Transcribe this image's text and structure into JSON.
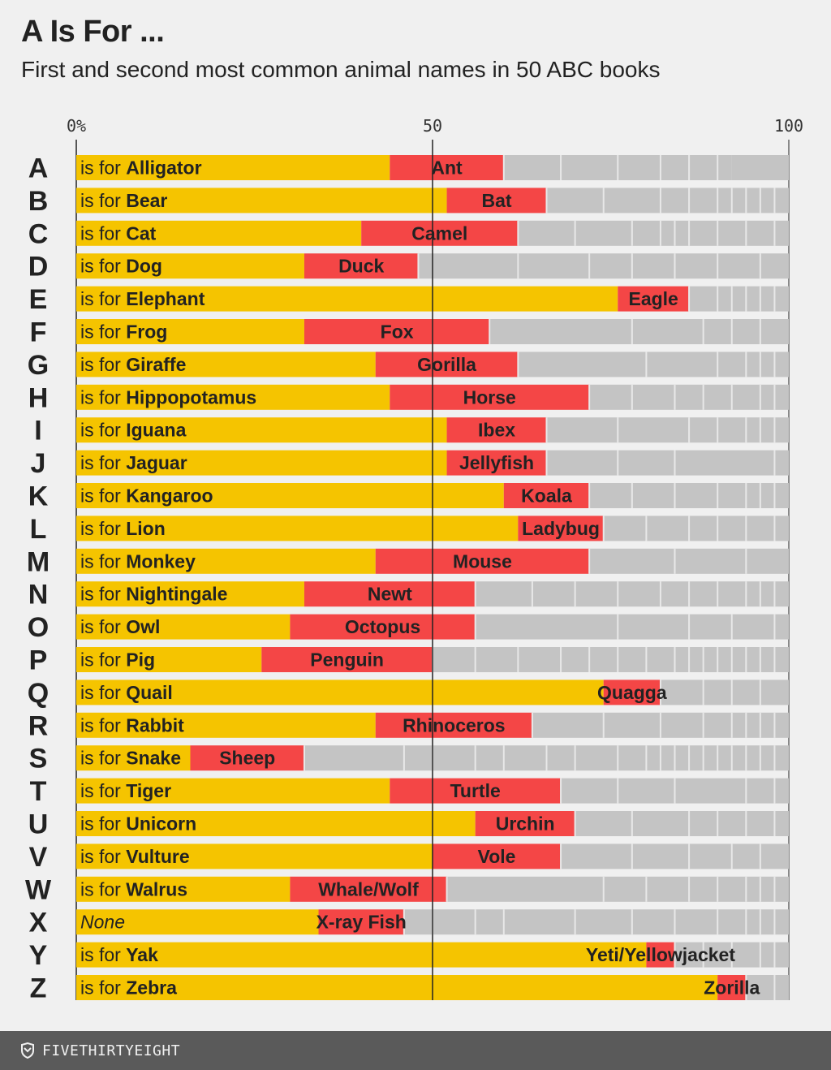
{
  "title": "A Is For ...",
  "subtitle": "First and second most common animal names in 50 ABC books",
  "footer": {
    "brand": "FIVETHIRTYEIGHT",
    "logo_icon": "fivethirtyeight-logo-icon"
  },
  "colors": {
    "first": "#f5c400",
    "second": "#f44646",
    "other": "#c4c4c4",
    "separator": "#e8e8e8"
  },
  "chart_data": {
    "type": "bar",
    "orientation": "horizontal",
    "stacked": true,
    "title": "A Is For ...",
    "subtitle": "First and second most common animal names in 50 ABC books",
    "xlim": [
      0,
      100
    ],
    "x_ticks": [
      0,
      50,
      100
    ],
    "x_tick_labels": [
      "0%",
      "50",
      "100"
    ],
    "prefix": "is for ",
    "rows": [
      {
        "letter": "A",
        "first": "Alligator",
        "first_pct": 44,
        "second": "Ant",
        "second_pct": 16,
        "others": [
          8,
          8,
          6,
          4,
          4,
          2
        ]
      },
      {
        "letter": "B",
        "first": "Bear",
        "first_pct": 52,
        "second": "Bat",
        "second_pct": 14,
        "others": [
          8,
          8,
          4,
          4,
          2,
          2,
          2,
          2,
          2
        ]
      },
      {
        "letter": "C",
        "first": "Cat",
        "first_pct": 40,
        "second": "Camel",
        "second_pct": 22,
        "others": [
          8,
          8,
          4,
          2,
          2,
          4,
          4,
          4,
          2
        ]
      },
      {
        "letter": "D",
        "first": "Dog",
        "first_pct": 32,
        "second": "Duck",
        "second_pct": 16,
        "others": [
          14,
          10,
          6,
          6,
          6,
          6,
          4,
          4,
          2
        ]
      },
      {
        "letter": "E",
        "first": "Elephant",
        "first_pct": 76,
        "second": "Eagle",
        "second_pct": 10,
        "others": [
          4,
          2,
          2,
          2,
          2,
          2
        ]
      },
      {
        "letter": "F",
        "first": "Frog",
        "first_pct": 32,
        "second": "Fox",
        "second_pct": 26,
        "others": [
          20,
          10,
          4,
          4,
          4
        ]
      },
      {
        "letter": "G",
        "first": "Giraffe",
        "first_pct": 42,
        "second": "Gorilla",
        "second_pct": 20,
        "others": [
          18,
          10,
          4,
          2,
          2,
          2
        ]
      },
      {
        "letter": "H",
        "first": "Hippopotamus",
        "first_pct": 44,
        "second": "Horse",
        "second_pct": 28,
        "others": [
          6,
          6,
          4,
          4,
          4,
          2,
          2
        ]
      },
      {
        "letter": "I",
        "first": "Iguana",
        "first_pct": 52,
        "second": "Ibex",
        "second_pct": 14,
        "others": [
          10,
          10,
          4,
          4,
          2,
          2,
          2
        ]
      },
      {
        "letter": "J",
        "first": "Jaguar",
        "first_pct": 52,
        "second": "Jellyfish",
        "second_pct": 14,
        "others": [
          10,
          8,
          14,
          2
        ]
      },
      {
        "letter": "K",
        "first": "Kangaroo",
        "first_pct": 60,
        "second": "Koala",
        "second_pct": 12,
        "others": [
          6,
          6,
          6,
          4,
          2,
          2,
          2
        ]
      },
      {
        "letter": "L",
        "first": "Lion",
        "first_pct": 62,
        "second": "Ladybug",
        "second_pct": 12,
        "others": [
          6,
          6,
          4,
          4,
          4,
          2
        ]
      },
      {
        "letter": "M",
        "first": "Monkey",
        "first_pct": 42,
        "second": "Mouse",
        "second_pct": 30,
        "others": [
          12,
          10,
          6
        ]
      },
      {
        "letter": "N",
        "first": "Nightingale",
        "first_pct": 32,
        "second": "Newt",
        "second_pct": 24,
        "others": [
          8,
          6,
          6,
          6,
          4,
          4,
          4,
          2,
          2,
          2
        ]
      },
      {
        "letter": "O",
        "first": "Owl",
        "first_pct": 30,
        "second": "Octopus",
        "second_pct": 26,
        "others": [
          20,
          10,
          6,
          6,
          2
        ]
      },
      {
        "letter": "P",
        "first": "Pig",
        "first_pct": 26,
        "second": "Penguin",
        "second_pct": 24,
        "others": [
          6,
          6,
          6,
          4,
          4,
          4,
          4,
          2,
          2,
          2,
          2,
          2,
          2,
          2,
          2,
          2
        ]
      },
      {
        "letter": "Q",
        "first": "Quail",
        "first_pct": 74,
        "second": "Quagga",
        "second_pct": 8,
        "others": [
          6,
          4,
          4,
          4
        ]
      },
      {
        "letter": "R",
        "first": "Rabbit",
        "first_pct": 42,
        "second": "Rhinoceros",
        "second_pct": 22,
        "others": [
          10,
          8,
          6,
          4,
          2,
          2,
          2,
          2
        ]
      },
      {
        "letter": "S",
        "first": "Snake",
        "first_pct": 16,
        "second": "Sheep",
        "second_pct": 16,
        "others": [
          14,
          4,
          6,
          4,
          6,
          4,
          6,
          4,
          2,
          2,
          2,
          2,
          2,
          2,
          2,
          2,
          2,
          2
        ]
      },
      {
        "letter": "T",
        "first": "Tiger",
        "first_pct": 44,
        "second": "Turtle",
        "second_pct": 24,
        "others": [
          8,
          8,
          10,
          4,
          2
        ]
      },
      {
        "letter": "U",
        "first": "Unicorn",
        "first_pct": 56,
        "second": "Urchin",
        "second_pct": 14,
        "others": [
          8,
          8,
          4,
          4,
          4,
          2
        ]
      },
      {
        "letter": "V",
        "first": "Vulture",
        "first_pct": 50,
        "second": "Vole",
        "second_pct": 18,
        "others": [
          10,
          8,
          6,
          4,
          4
        ]
      },
      {
        "letter": "W",
        "first": "Walrus",
        "first_pct": 30,
        "second": "Whale/Wolf",
        "second_pct": 22,
        "others": [
          22,
          6,
          6,
          4,
          4,
          2,
          2,
          2
        ]
      },
      {
        "letter": "X",
        "first": "None",
        "first_italic": true,
        "first_pct": 34,
        "second": "X-ray Fish",
        "second_pct": 12,
        "others": [
          4,
          6,
          4,
          10,
          8,
          6,
          6,
          4,
          2,
          2,
          2
        ]
      },
      {
        "letter": "Y",
        "first": "Yak",
        "first_pct": 80,
        "second": "Yeti/Yellowjacket",
        "second_pct": 4,
        "others": [
          4,
          4,
          4,
          2,
          2
        ]
      },
      {
        "letter": "Z",
        "first": "Zebra",
        "first_pct": 90,
        "second": "Zorilla",
        "second_pct": 4,
        "others": [
          4,
          2
        ]
      }
    ]
  }
}
